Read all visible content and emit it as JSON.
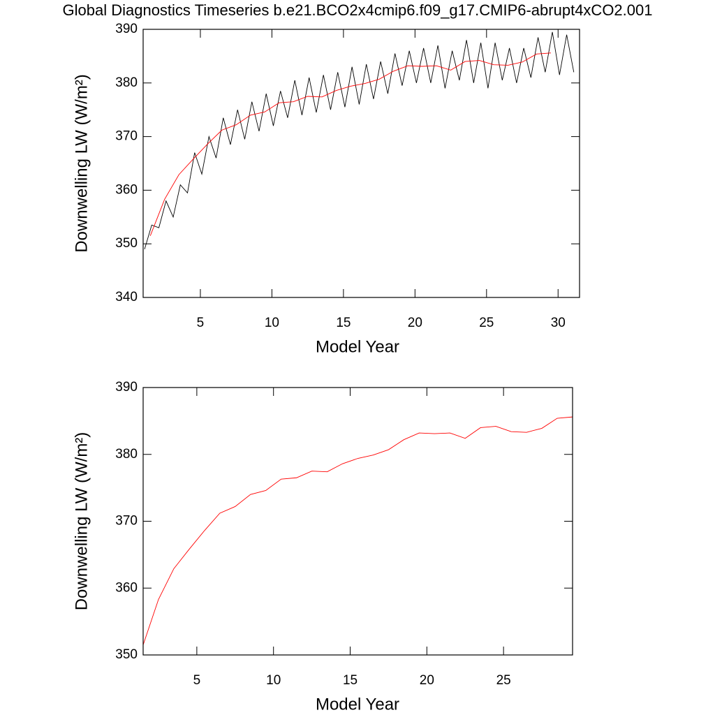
{
  "chart_data": [
    {
      "type": "line",
      "title": "Global Diagnostics Timeseries b.e21.BCO2x4cmip6.f09_g17.CMIP6-abrupt4xCO2.001",
      "xlabel": "Model Year",
      "ylabel": "Downwelling LW (W/m²)",
      "xlim": [
        1,
        31.5
      ],
      "xticks": [
        5,
        10,
        15,
        20,
        25,
        30
      ],
      "ylim": [
        340,
        390
      ],
      "yticks": [
        340,
        350,
        360,
        370,
        380,
        390
      ],
      "series": [
        {
          "color": "#000000",
          "x": [
            1.1,
            1.6,
            2.1,
            2.6,
            3.1,
            3.6,
            4.1,
            4.6,
            5.1,
            5.6,
            6.1,
            6.6,
            7.1,
            7.6,
            8.1,
            8.6,
            9.1,
            9.6,
            10.1,
            10.6,
            11.1,
            11.6,
            12.1,
            12.6,
            13.1,
            13.6,
            14.1,
            14.6,
            15.1,
            15.6,
            16.1,
            16.6,
            17.1,
            17.6,
            18.1,
            18.6,
            19.1,
            19.6,
            20.1,
            20.6,
            21.1,
            21.6,
            22.1,
            22.6,
            23.1,
            23.6,
            24.1,
            24.6,
            25.1,
            25.6,
            26.1,
            26.6,
            27.1,
            27.6,
            28.1,
            28.6,
            29.1,
            29.6,
            30.1,
            30.6,
            31.1
          ],
          "values": [
            349,
            353.5,
            353,
            358,
            355,
            361,
            359.5,
            367,
            363,
            370,
            366,
            373.5,
            368.5,
            375,
            369.5,
            376.5,
            371,
            378,
            372,
            378.5,
            373.5,
            380.5,
            374,
            381,
            374.5,
            381.5,
            375,
            382,
            375.5,
            383,
            376,
            383.5,
            377,
            384,
            378,
            385.5,
            379.5,
            386,
            380,
            386.5,
            380,
            387,
            379,
            386,
            380.5,
            388,
            380,
            387.5,
            379,
            387.5,
            380.5,
            386.5,
            380,
            386.5,
            381,
            388.5,
            382,
            389.5,
            381.5,
            389,
            382
          ]
        },
        {
          "color": "#ff0000",
          "x": [
            1.5,
            2.5,
            3.5,
            4.5,
            5.5,
            6.5,
            7.5,
            8.5,
            9.5,
            10.5,
            11.5,
            12.5,
            13.5,
            14.5,
            15.5,
            16.5,
            17.5,
            18.5,
            19.5,
            20.5,
            21.5,
            22.5,
            23.5,
            24.5,
            25.5,
            26.5,
            27.5,
            28.5,
            29.5
          ],
          "values": [
            351.5,
            358.3,
            362.9,
            365.8,
            368.6,
            371.2,
            372.2,
            374.0,
            374.6,
            376.3,
            376.5,
            377.5,
            377.4,
            378.6,
            379.4,
            379.9,
            380.7,
            382.2,
            383.2,
            383.1,
            383.2,
            382.4,
            384.0,
            384.2,
            383.4,
            383.3,
            383.9,
            385.4,
            385.6
          ]
        }
      ]
    },
    {
      "type": "line",
      "xlabel": "Model Year",
      "ylabel": "Downwelling LW (W/m²)",
      "xlim": [
        1.5,
        29.5
      ],
      "xticks": [
        5,
        10,
        15,
        20,
        25
      ],
      "ylim": [
        350,
        390
      ],
      "yticks": [
        350,
        360,
        370,
        380,
        390
      ],
      "series": [
        {
          "color": "#ff0000",
          "x": [
            1.5,
            2.5,
            3.5,
            4.5,
            5.5,
            6.5,
            7.5,
            8.5,
            9.5,
            10.5,
            11.5,
            12.5,
            13.5,
            14.5,
            15.5,
            16.5,
            17.5,
            18.5,
            19.5,
            20.5,
            21.5,
            22.5,
            23.5,
            24.5,
            25.5,
            26.5,
            27.5,
            28.5,
            29.5
          ],
          "values": [
            351.5,
            358.3,
            362.9,
            365.8,
            368.6,
            371.2,
            372.2,
            374.0,
            374.6,
            376.3,
            376.5,
            377.5,
            377.4,
            378.6,
            379.4,
            379.9,
            380.7,
            382.2,
            383.2,
            383.1,
            383.2,
            382.4,
            384.0,
            384.2,
            383.4,
            383.3,
            383.9,
            385.4,
            385.6
          ]
        }
      ]
    }
  ]
}
